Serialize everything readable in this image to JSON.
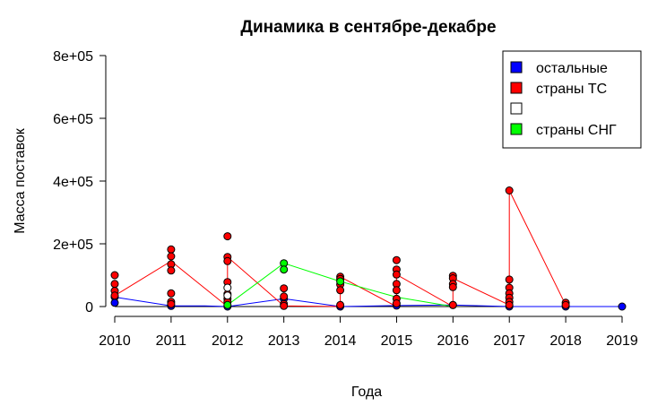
{
  "chart_data": {
    "type": "line",
    "title": "Динамика в сентябре-декабре",
    "xlabel": "Года",
    "ylabel": "Масса поставок",
    "xlim": [
      2010,
      2019
    ],
    "ylim": [
      0,
      800000
    ],
    "x_ticks": [
      "2010",
      "2011",
      "2012",
      "2013",
      "2014",
      "2015",
      "2016",
      "2017",
      "2018",
      "2019"
    ],
    "y_ticks": [
      {
        "value": 0,
        "label": "0"
      },
      {
        "value": 200000,
        "label": "2e+05"
      },
      {
        "value": 400000,
        "label": "4e+05"
      },
      {
        "value": 600000,
        "label": "6e+05"
      },
      {
        "value": 800000,
        "label": "8e+05"
      }
    ],
    "legend": {
      "position": "top-right"
    },
    "series": [
      {
        "name": "остальные",
        "color": "#0000ff",
        "points": [
          {
            "x": 2010,
            "y": 30000
          },
          {
            "x": 2010,
            "y": 12000
          },
          {
            "x": 2011,
            "y": 2000
          },
          {
            "x": 2012,
            "y": 0
          },
          {
            "x": 2013,
            "y": 25000
          },
          {
            "x": 2014,
            "y": 0
          },
          {
            "x": 2015,
            "y": 3000
          },
          {
            "x": 2016,
            "y": 5000
          },
          {
            "x": 2017,
            "y": 0
          },
          {
            "x": 2018,
            "y": 0
          },
          {
            "x": 2019,
            "y": 0
          }
        ],
        "line": [
          [
            2010,
            30000
          ],
          [
            2011,
            2000
          ],
          [
            2011.6,
            2000
          ],
          [
            2012,
            0
          ],
          [
            2013,
            25000
          ],
          [
            2014,
            0
          ],
          [
            2015,
            3000
          ],
          [
            2016,
            5000
          ],
          [
            2017,
            0
          ],
          [
            2018,
            0
          ],
          [
            2019,
            0
          ]
        ]
      },
      {
        "name": "страны ТС",
        "color": "#ff0000",
        "points": [
          {
            "x": 2010,
            "y": 100000
          },
          {
            "x": 2010,
            "y": 72000
          },
          {
            "x": 2010,
            "y": 50000
          },
          {
            "x": 2010,
            "y": 35000
          },
          {
            "x": 2011,
            "y": 182000
          },
          {
            "x": 2011,
            "y": 160000
          },
          {
            "x": 2011,
            "y": 135000
          },
          {
            "x": 2011,
            "y": 115000
          },
          {
            "x": 2011,
            "y": 42000
          },
          {
            "x": 2011,
            "y": 15000
          },
          {
            "x": 2011,
            "y": 8000
          },
          {
            "x": 2012,
            "y": 224000
          },
          {
            "x": 2012,
            "y": 158000
          },
          {
            "x": 2012,
            "y": 145000
          },
          {
            "x": 2012,
            "y": 78000
          },
          {
            "x": 2012,
            "y": 40000
          },
          {
            "x": 2012,
            "y": 25000
          },
          {
            "x": 2012,
            "y": 15000
          },
          {
            "x": 2013,
            "y": 58000
          },
          {
            "x": 2013,
            "y": 32000
          },
          {
            "x": 2013,
            "y": 8000
          },
          {
            "x": 2013,
            "y": 2000
          },
          {
            "x": 2014,
            "y": 95000
          },
          {
            "x": 2014,
            "y": 88000
          },
          {
            "x": 2014,
            "y": 70000
          },
          {
            "x": 2014,
            "y": 52000
          },
          {
            "x": 2014,
            "y": 5000
          },
          {
            "x": 2015,
            "y": 148000
          },
          {
            "x": 2015,
            "y": 118000
          },
          {
            "x": 2015,
            "y": 102000
          },
          {
            "x": 2015,
            "y": 72000
          },
          {
            "x": 2015,
            "y": 52000
          },
          {
            "x": 2015,
            "y": 25000
          },
          {
            "x": 2015,
            "y": 10000
          },
          {
            "x": 2016,
            "y": 98000
          },
          {
            "x": 2016,
            "y": 90000
          },
          {
            "x": 2016,
            "y": 72000
          },
          {
            "x": 2016,
            "y": 62000
          },
          {
            "x": 2016,
            "y": 5000
          },
          {
            "x": 2017,
            "y": 370000
          },
          {
            "x": 2017,
            "y": 86000
          },
          {
            "x": 2017,
            "y": 60000
          },
          {
            "x": 2017,
            "y": 42000
          },
          {
            "x": 2017,
            "y": 28000
          },
          {
            "x": 2017,
            "y": 15000
          },
          {
            "x": 2017,
            "y": 5000
          },
          {
            "x": 2018,
            "y": 12000
          },
          {
            "x": 2018,
            "y": 5000
          }
        ],
        "line": [
          [
            2010,
            35000
          ],
          [
            2011,
            145000
          ],
          [
            2012,
            0
          ],
          [
            2012,
            158000
          ],
          [
            2013,
            2000
          ],
          [
            2014,
            0
          ],
          [
            2014,
            95000
          ],
          [
            2015,
            0
          ],
          [
            2015,
            102000
          ],
          [
            2016,
            0
          ],
          [
            2016,
            90000
          ],
          [
            2017,
            5000
          ],
          [
            2017,
            370000
          ],
          [
            2018,
            5000
          ]
        ]
      },
      {
        "name": "",
        "color": "#ffffff",
        "points": [
          {
            "x": 2012,
            "y": 60000
          },
          {
            "x": 2012,
            "y": 35000
          }
        ],
        "line": []
      },
      {
        "name": "страны СНГ",
        "color": "#00ff00",
        "points": [
          {
            "x": 2012,
            "y": 5000
          },
          {
            "x": 2013,
            "y": 138000
          },
          {
            "x": 2013,
            "y": 118000
          },
          {
            "x": 2014,
            "y": 80000
          }
        ],
        "line": [
          [
            2012,
            5000
          ],
          [
            2013,
            138000
          ],
          [
            2014,
            80000
          ],
          [
            2015,
            30000
          ],
          [
            2016,
            0
          ]
        ]
      }
    ]
  }
}
